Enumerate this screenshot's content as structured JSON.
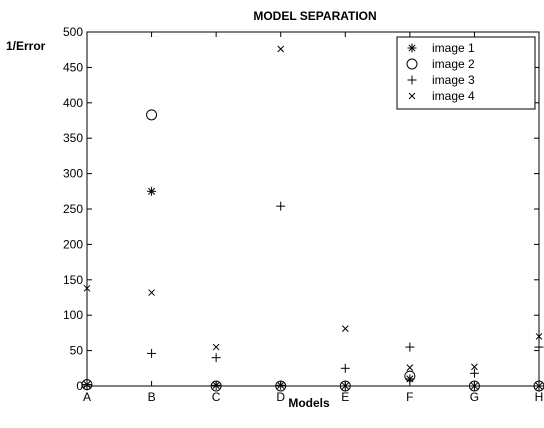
{
  "chart_data": {
    "type": "scatter",
    "title": "MODEL SEPARATION",
    "xlabel": "Models",
    "ylabel": "1/Error",
    "categories": [
      "A",
      "B",
      "C",
      "D",
      "E",
      "F",
      "G",
      "H"
    ],
    "ylim": [
      0,
      500
    ],
    "yticks": [
      0,
      50,
      100,
      150,
      200,
      250,
      300,
      350,
      400,
      450,
      500
    ],
    "grid": false,
    "legend_position": "top-right",
    "series": [
      {
        "name": "image 1",
        "marker": "asterisk",
        "values": [
          2,
          275,
          1,
          1,
          0,
          10,
          0,
          0
        ]
      },
      {
        "name": "image 2",
        "marker": "circle",
        "values": [
          2,
          383,
          0,
          0,
          0,
          14,
          0,
          0
        ]
      },
      {
        "name": "image 3",
        "marker": "plus",
        "values": [
          0,
          46,
          40,
          254,
          25,
          55,
          18,
          55
        ]
      },
      {
        "name": "image 4",
        "marker": "x",
        "values": [
          138,
          132,
          55,
          476,
          81,
          26,
          27,
          70
        ]
      }
    ]
  }
}
